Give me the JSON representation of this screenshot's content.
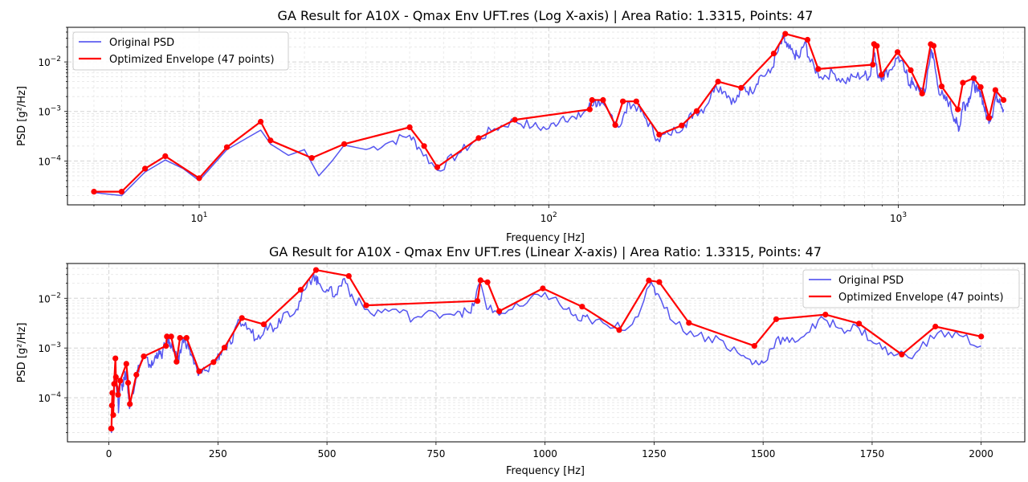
{
  "chart_data": [
    {
      "type": "line",
      "title": "GA Result for A10X - Qmax Env UFT.res (Log X-axis) | Area Ratio: 1.3315, Points: 47",
      "xlabel": "Frequency [Hz]",
      "ylabel": "PSD [g²/Hz]",
      "xscale": "log",
      "yscale": "log",
      "xlim": [
        4.2,
        2300
      ],
      "ylim": [
        1.3e-05,
        0.05
      ],
      "xticks": [
        {
          "value": 10,
          "base": "10",
          "exp": "1"
        },
        {
          "value": 100,
          "base": "10",
          "exp": "2"
        },
        {
          "value": 1000,
          "base": "10",
          "exp": "3"
        }
      ],
      "yticks": [
        {
          "value": 0.0001,
          "base": "10",
          "exp": "−4"
        },
        {
          "value": 0.001,
          "base": "10",
          "exp": "−3"
        },
        {
          "value": 0.01,
          "base": "10",
          "exp": "−2"
        }
      ],
      "grid": true,
      "legend_position": "top-left",
      "legend": [
        {
          "label": "Original PSD",
          "color": "#4444ee"
        },
        {
          "label": "Optimized Envelope (47 points)",
          "color": "#ff0000"
        }
      ]
    },
    {
      "type": "line",
      "title": "GA Result for A10X - Qmax Env UFT.res (Linear X-axis) | Area Ratio: 1.3315, Points: 47",
      "xlabel": "Frequency [Hz]",
      "ylabel": "PSD [g²/Hz]",
      "xscale": "linear",
      "yscale": "log",
      "xlim": [
        -95,
        2100
      ],
      "ylim": [
        1.3e-05,
        0.05
      ],
      "xticks": [
        {
          "value": 0,
          "label": "0"
        },
        {
          "value": 250,
          "label": "250"
        },
        {
          "value": 500,
          "label": "500"
        },
        {
          "value": 750,
          "label": "750"
        },
        {
          "value": 1000,
          "label": "1000"
        },
        {
          "value": 1250,
          "label": "1250"
        },
        {
          "value": 1500,
          "label": "1500"
        },
        {
          "value": 1750,
          "label": "1750"
        },
        {
          "value": 2000,
          "label": "2000"
        }
      ],
      "yticks": [
        {
          "value": 0.0001,
          "base": "10",
          "exp": "−4"
        },
        {
          "value": 0.001,
          "base": "10",
          "exp": "−3"
        },
        {
          "value": 0.01,
          "base": "10",
          "exp": "−2"
        }
      ],
      "grid": true,
      "legend_position": "top-right",
      "legend": [
        {
          "label": "Original PSD",
          "color": "#4444ee"
        },
        {
          "label": "Optimized Envelope (47 points)",
          "color": "#ff0000"
        }
      ]
    }
  ],
  "series": {
    "original_psd": {
      "name": "Original PSD",
      "color": "#4444ee",
      "points": [
        [
          5,
          2.3e-05
        ],
        [
          6,
          2e-05
        ],
        [
          7,
          6e-05
        ],
        [
          8,
          0.000105
        ],
        [
          9,
          7e-05
        ],
        [
          10,
          4e-05
        ],
        [
          12,
          0.00017
        ],
        [
          15,
          0.00042
        ],
        [
          16,
          0.00022
        ],
        [
          18,
          0.00013
        ],
        [
          20,
          0.00017
        ],
        [
          22,
          5e-05
        ],
        [
          24,
          0.0001
        ],
        [
          26,
          0.00021
        ],
        [
          30,
          0.00017
        ],
        [
          35,
          0.00024
        ],
        [
          40,
          0.00033
        ],
        [
          43,
          0.00017
        ],
        [
          48,
          6.5e-05
        ],
        [
          55,
          0.00014
        ],
        [
          62,
          0.00026
        ],
        [
          70,
          0.00045
        ],
        [
          80,
          0.00065
        ],
        [
          90,
          0.0005
        ],
        [
          100,
          0.00045
        ],
        [
          110,
          0.0008
        ],
        [
          120,
          0.0007
        ],
        [
          130,
          0.0012
        ],
        [
          135,
          0.0016
        ],
        [
          140,
          0.0013
        ],
        [
          150,
          0.0009
        ],
        [
          160,
          0.0005
        ],
        [
          170,
          0.0015
        ],
        [
          180,
          0.0012
        ],
        [
          190,
          0.0007
        ],
        [
          205,
          0.00028
        ],
        [
          220,
          0.00035
        ],
        [
          245,
          0.00055
        ],
        [
          260,
          0.00095
        ],
        [
          280,
          0.0012
        ],
        [
          300,
          0.0035
        ],
        [
          320,
          0.0025
        ],
        [
          340,
          0.0015
        ],
        [
          360,
          0.003
        ],
        [
          380,
          0.0025
        ],
        [
          400,
          0.005
        ],
        [
          430,
          0.006
        ],
        [
          450,
          0.015
        ],
        [
          470,
          0.03
        ],
        [
          480,
          0.02
        ],
        [
          500,
          0.015
        ],
        [
          520,
          0.012
        ],
        [
          540,
          0.025
        ],
        [
          560,
          0.01
        ],
        [
          600,
          0.005
        ],
        [
          650,
          0.006
        ],
        [
          700,
          0.004
        ],
        [
          750,
          0.005
        ],
        [
          800,
          0.0055
        ],
        [
          830,
          0.005
        ],
        [
          850,
          0.02
        ],
        [
          870,
          0.006
        ],
        [
          900,
          0.005
        ],
        [
          950,
          0.007
        ],
        [
          1000,
          0.013
        ],
        [
          1050,
          0.006
        ],
        [
          1080,
          0.0035
        ],
        [
          1100,
          0.004
        ],
        [
          1150,
          0.0025
        ],
        [
          1200,
          0.003
        ],
        [
          1240,
          0.018
        ],
        [
          1260,
          0.012
        ],
        [
          1300,
          0.003
        ],
        [
          1350,
          0.0018
        ],
        [
          1400,
          0.0015
        ],
        [
          1450,
          0.0007
        ],
        [
          1480,
          0.0005
        ],
        [
          1500,
          0.0005
        ],
        [
          1530,
          0.0015
        ],
        [
          1560,
          0.0013
        ],
        [
          1600,
          0.002
        ],
        [
          1640,
          0.0038
        ],
        [
          1680,
          0.0025
        ],
        [
          1720,
          0.0025
        ],
        [
          1760,
          0.0012
        ],
        [
          1800,
          0.0007
        ],
        [
          1850,
          0.0008
        ],
        [
          1900,
          0.002
        ],
        [
          1950,
          0.0018
        ],
        [
          2000,
          0.0011
        ]
      ]
    },
    "optimized_envelope": {
      "name": "Optimized Envelope (47 points)",
      "color": "#ff0000",
      "points": [
        [
          5,
          2.4e-05
        ],
        [
          6,
          2.4e-05
        ],
        [
          7,
          7e-05
        ],
        [
          8,
          0.000125
        ],
        [
          10,
          4.5e-05
        ],
        [
          12,
          0.00019
        ],
        [
          15,
          0.00062
        ],
        [
          16,
          0.00026
        ],
        [
          21,
          0.000115
        ],
        [
          26,
          0.00022
        ],
        [
          40,
          0.00048
        ],
        [
          44,
          0.0002
        ],
        [
          48,
          7.5e-05
        ],
        [
          63,
          0.00029
        ],
        [
          80,
          0.00068
        ],
        [
          131,
          0.0011
        ],
        [
          133,
          0.0017
        ],
        [
          143,
          0.0017
        ],
        [
          155,
          0.00053
        ],
        [
          163,
          0.0016
        ],
        [
          178,
          0.0016
        ],
        [
          207,
          0.00034
        ],
        [
          240,
          0.00052
        ],
        [
          265,
          0.00102
        ],
        [
          305,
          0.004
        ],
        [
          355,
          0.003
        ],
        [
          440,
          0.0148
        ],
        [
          475,
          0.037
        ],
        [
          550,
          0.028
        ],
        [
          590,
          0.0072
        ],
        [
          845,
          0.0088
        ],
        [
          852,
          0.023
        ],
        [
          868,
          0.021
        ],
        [
          895,
          0.0055
        ],
        [
          995,
          0.0158
        ],
        [
          1085,
          0.0068
        ],
        [
          1170,
          0.0023
        ],
        [
          1238,
          0.0228
        ],
        [
          1262,
          0.0212
        ],
        [
          1330,
          0.0032
        ],
        [
          1480,
          0.0011
        ],
        [
          1530,
          0.0038
        ],
        [
          1643,
          0.0047
        ],
        [
          1720,
          0.0031
        ],
        [
          1818,
          0.00074
        ],
        [
          1895,
          0.0027
        ],
        [
          2000,
          0.0017
        ]
      ]
    }
  }
}
